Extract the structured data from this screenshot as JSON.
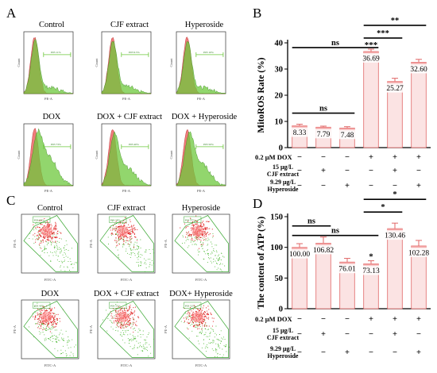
{
  "panels": {
    "A": {
      "letter": "A",
      "plots": [
        {
          "title": "Control",
          "gate": "P03 11%"
        },
        {
          "title": "CJF extract",
          "gate": "P03 9.5%"
        },
        {
          "title": "Hyperoside",
          "gate": "P03 10%"
        },
        {
          "title": "DOX",
          "gate": "P03 73%"
        },
        {
          "title": "DOX + CJF extract",
          "gate": "P03 40%"
        },
        {
          "title": "DOX + Hyperoside",
          "gate": "P03 50%"
        }
      ],
      "xlabel": "PE-A",
      "ylabel": "Count"
    },
    "C": {
      "letter": "C",
      "plots": [
        {
          "title": "Control",
          "gate": "P03 60%"
        },
        {
          "title": "CJF extract",
          "gate": "P03 58%"
        },
        {
          "title": "Hyperoside",
          "gate": "P03 57%"
        },
        {
          "title": "DOX",
          "gate": "P03 41%"
        },
        {
          "title": "DOX + CJF extract",
          "gate": "P03 55%"
        },
        {
          "title": "DOX+ Hyperoside",
          "gate": "P03 52%"
        }
      ],
      "xlabel": "FITC-A",
      "ylabel": "PE-A"
    },
    "B": {
      "letter": "B"
    },
    "D": {
      "letter": "D"
    }
  },
  "treatment_rows": [
    {
      "label": "0.2 μM DOX",
      "signs": [
        "−",
        "−",
        "−",
        "+",
        "+",
        "+"
      ]
    },
    {
      "label_lines": [
        "15 μg/L",
        "CJF extract"
      ],
      "signs": [
        "−",
        "+",
        "−",
        "−",
        "+",
        "−"
      ]
    },
    {
      "label_lines": [
        "9.29 μg/L",
        "Hyperoside"
      ],
      "signs": [
        "−",
        "−",
        "+",
        "−",
        "−",
        "+"
      ]
    }
  ],
  "colors": {
    "bar_fill": "#fbe3e3",
    "bar_stroke": "#e06666",
    "bar_top": "#f2a0a0",
    "hist_fill": "#ef6d6d",
    "hist_shift": "#6ec83c",
    "dot_red": "#e02020",
    "dot_green": "#4ab830"
  },
  "chart_data": [
    {
      "type": "bar",
      "panel": "B",
      "ylabel": "MitoROS Rate  (%)",
      "ylim": [
        0,
        40
      ],
      "yticks": [
        0,
        10,
        20,
        30,
        40
      ],
      "values": [
        8.33,
        7.79,
        7.48,
        36.69,
        25.27,
        32.6
      ],
      "value_labels": [
        "8.33",
        "7.79",
        "7.48",
        "36.69",
        "25.27",
        "32.60"
      ],
      "errors": [
        0.6,
        0.4,
        0.5,
        0.9,
        1.2,
        1.1
      ],
      "bar_stars": [
        "",
        "",
        "",
        "***",
        "",
        ""
      ],
      "significance": [
        {
          "from": 0,
          "to": 2,
          "label": "ns"
        },
        {
          "from": 0,
          "to": 3,
          "label": "ns"
        },
        {
          "from": 3,
          "to": 4,
          "label": "***"
        },
        {
          "from": 3,
          "to": 5,
          "label": "**"
        }
      ]
    },
    {
      "type": "bar",
      "panel": "D",
      "ylabel": "The content of ATP (%)",
      "ylim": [
        0,
        150
      ],
      "yticks": [
        0,
        50,
        100,
        150
      ],
      "values": [
        100.0,
        106.82,
        76.01,
        73.13,
        130.46,
        102.28
      ],
      "value_labels": [
        "100.00",
        "106.82",
        "76.01",
        "73.13",
        "130.46",
        "102.28"
      ],
      "errors": [
        6,
        10,
        6,
        5,
        9,
        9
      ],
      "bar_stars": [
        "",
        "",
        "",
        "*",
        "",
        ""
      ],
      "significance": [
        {
          "from": 0,
          "to": 1,
          "label": "ns"
        },
        {
          "from": 0,
          "to": 3,
          "label": "ns"
        },
        {
          "from": 3,
          "to": 4,
          "label": "*"
        },
        {
          "from": 3,
          "to": 5,
          "label": "*"
        }
      ]
    }
  ]
}
